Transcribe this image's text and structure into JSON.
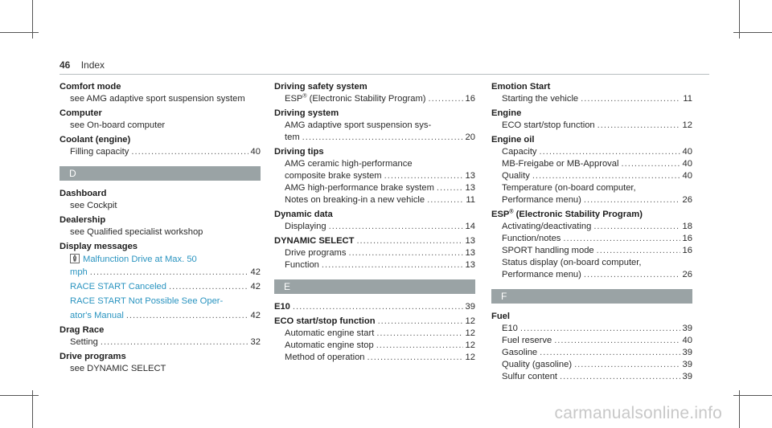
{
  "page": {
    "number": "46",
    "section": "Index"
  },
  "watermark": "carmanualsonline.info",
  "col1": {
    "comfort": {
      "h": "Comfort mode",
      "s": "see AMG adaptive sport suspension system"
    },
    "computer": {
      "h": "Computer",
      "s": "see On-board computer"
    },
    "coolant": {
      "h": "Coolant (engine)",
      "t": "Filling capacity",
      "p": "40"
    },
    "barD": "D",
    "dashboard": {
      "h": "Dashboard",
      "s": "see Cockpit"
    },
    "dealership": {
      "h": "Dealership",
      "s": "see Qualified specialist workshop"
    },
    "display": {
      "h": "Display messages",
      "m1a": "Malfunction Drive at Max. 50",
      "m1b": "mph",
      "m1p": "42",
      "m2": "RACE START Canceled",
      "m2p": "42",
      "m3a": "RACE START Not Possible See Oper-",
      "m3b": "ator's Manual",
      "m3p": "42"
    },
    "drag": {
      "h": "Drag Race",
      "t": "Setting",
      "p": "32"
    },
    "drive": {
      "h": "Drive programs",
      "s": "see DYNAMIC SELECT"
    }
  },
  "col2": {
    "dss": {
      "h": "Driving safety system",
      "t_pre": "ESP",
      "reg": "®",
      "t_post": " (Electronic Stability Program)",
      "p": "16"
    },
    "ds": {
      "h": "Driving system",
      "s1": "AMG adaptive sport suspension sys-",
      "s2": "tem",
      "p": "20"
    },
    "tips": {
      "h": "Driving tips",
      "s1": "AMG ceramic high-performance",
      "s2": "composite brake system",
      "p2": "13",
      "s3": "AMG high-performance brake system",
      "p3": "13",
      "s4": "Notes on breaking-in a new vehicle",
      "p4": "11"
    },
    "dyn": {
      "h": "Dynamic data",
      "t": "Displaying",
      "p": "14"
    },
    "dsel": {
      "h": "DYNAMIC SELECT",
      "hp": "13",
      "t1": "Drive programs",
      "p1": "13",
      "t2": "Function",
      "p2": "13"
    },
    "barE": "E",
    "e10": {
      "h": "E10",
      "p": "39"
    },
    "eco": {
      "h": "ECO start/stop function",
      "hp": "12",
      "t1": "Automatic engine start",
      "p1": "12",
      "t2": "Automatic engine stop",
      "p2": "12",
      "t3": "Method of operation",
      "p3": "12"
    }
  },
  "col3": {
    "emstart": {
      "h": "Emotion Start",
      "t": "Starting the vehicle",
      "p": "11"
    },
    "engine": {
      "h": "Engine",
      "t": "ECO start/stop function",
      "p": "12"
    },
    "oil": {
      "h": "Engine oil",
      "t1": "Capacity",
      "p1": "40",
      "t2": "MB-Freigabe or MB-Approval",
      "p2": "40",
      "t3": "Quality",
      "p3": "40",
      "t4a": "Temperature (on-board computer,",
      "t4b": "Performance menu)",
      "p4": "26"
    },
    "esp": {
      "h_pre": "ESP",
      "reg": "®",
      "h_post": " (Electronic Stability Program)",
      "t1": "Activating/deactivating",
      "p1": "18",
      "t2": "Function/notes",
      "p2": "16",
      "t3": "SPORT handling mode",
      "p3": "16",
      "t4a": "Status display (on-board computer,",
      "t4b": "Performance menu)",
      "p4": "26"
    },
    "barF": "F",
    "fuel": {
      "h": "Fuel",
      "t1": "E10",
      "p1": "39",
      "t2": "Fuel reserve",
      "p2": "40",
      "t3": "Gasoline",
      "p3": "39",
      "t4": "Quality (gasoline)",
      "p4": "39",
      "t5": "Sulfur content",
      "p5": "39"
    }
  }
}
